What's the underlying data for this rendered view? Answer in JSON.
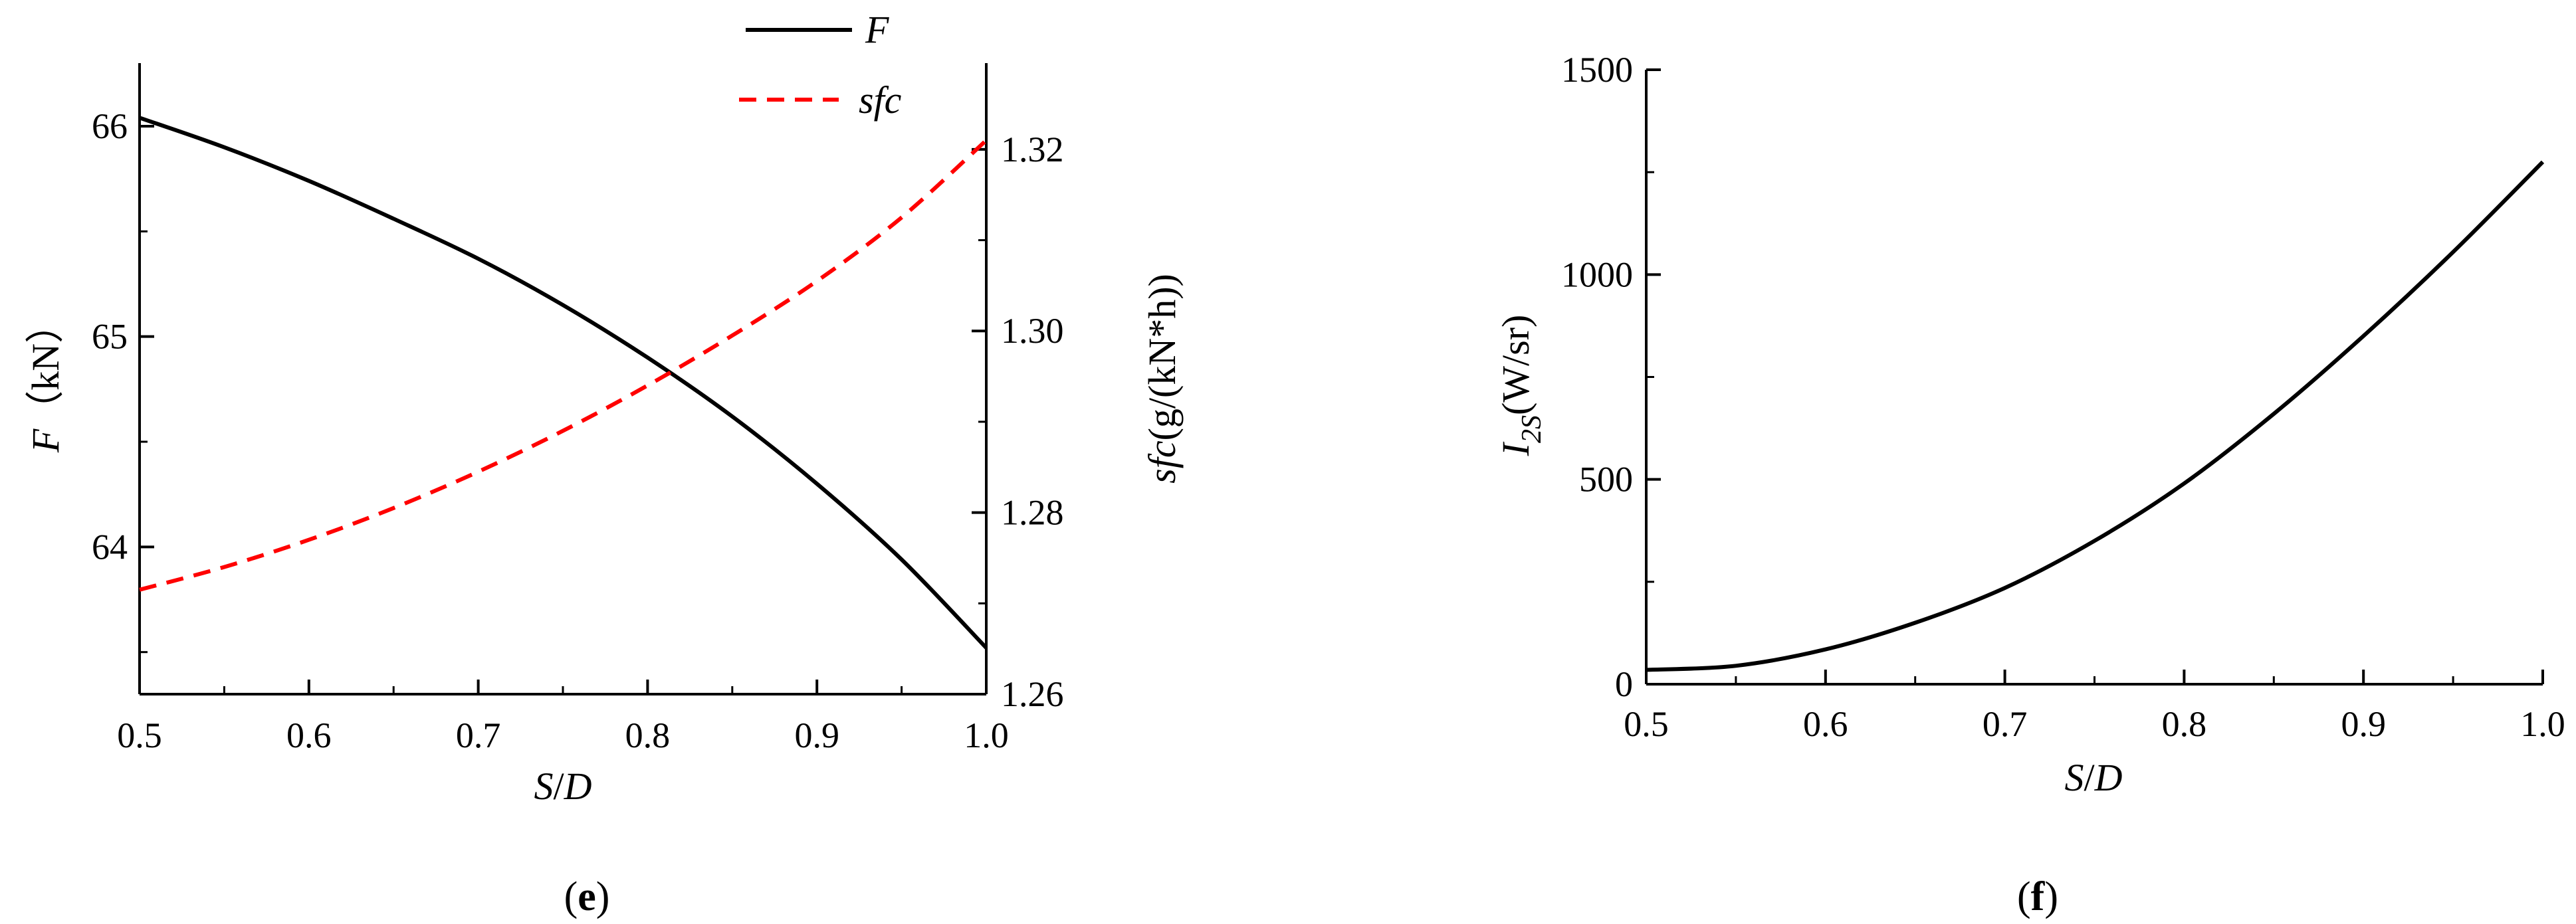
{
  "chart_data": [
    {
      "type": "line",
      "panel": "(e)",
      "panel_letter": "e",
      "x_label_S": "S",
      "x_label_sep": "/",
      "x_label_D": "D",
      "x_ticks": [
        "0.5",
        "0.6",
        "0.7",
        "0.8",
        "0.9",
        "1.0"
      ],
      "xlim": [
        0.5,
        1.0
      ],
      "y_left_label_var": "F",
      "y_left_label_unit": "（kN）",
      "y_left_ticks": [
        "64",
        "65",
        "66"
      ],
      "y_left_lim": [
        63.3,
        66.3
      ],
      "y_right_label_var": "sfc",
      "y_right_label_unit": "(g/(kN*h))",
      "y_right_ticks": [
        "1.26",
        "1.28",
        "1.30",
        "1.32"
      ],
      "y_right_lim": [
        1.26,
        1.3295
      ],
      "legend_position": "top-center",
      "series": [
        {
          "name": "F",
          "axis": "left",
          "color": "#000000",
          "style": "solid",
          "x": [
            0.5,
            0.55,
            0.6,
            0.65,
            0.7,
            0.75,
            0.8,
            0.85,
            0.9,
            0.95,
            1.0
          ],
          "y": [
            66.04,
            65.9,
            65.74,
            65.56,
            65.37,
            65.15,
            64.9,
            64.62,
            64.3,
            63.94,
            63.52
          ]
        },
        {
          "name": "sfc",
          "axis": "right",
          "color": "#ff0000",
          "style": "dashed",
          "x": [
            0.5,
            0.55,
            0.6,
            0.65,
            0.7,
            0.75,
            0.8,
            0.85,
            0.9,
            0.95,
            1.0
          ],
          "y": [
            1.2715,
            1.274,
            1.277,
            1.2805,
            1.2845,
            1.289,
            1.294,
            1.2995,
            1.3055,
            1.3125,
            1.321
          ]
        }
      ]
    },
    {
      "type": "line",
      "panel": "(f)",
      "panel_letter": "f",
      "x_label_S": "S",
      "x_label_sep": "/",
      "x_label_D": "D",
      "x_ticks": [
        "0.5",
        "0.6",
        "0.7",
        "0.8",
        "0.9",
        "1.0"
      ],
      "xlim": [
        0.5,
        1.0
      ],
      "y_label_var": "I",
      "y_label_sub": "2S",
      "y_label_unit": "(W/sr)",
      "y_ticks": [
        "0",
        "500",
        "1000",
        "1500"
      ],
      "ylim": [
        0,
        1500
      ],
      "series": [
        {
          "color": "#000000",
          "style": "solid",
          "x": [
            0.5,
            0.55,
            0.6,
            0.65,
            0.7,
            0.75,
            0.8,
            0.85,
            0.9,
            0.95,
            1.0
          ],
          "y": [
            35,
            45,
            85,
            150,
            235,
            350,
            490,
            660,
            850,
            1055,
            1275
          ]
        }
      ]
    }
  ]
}
